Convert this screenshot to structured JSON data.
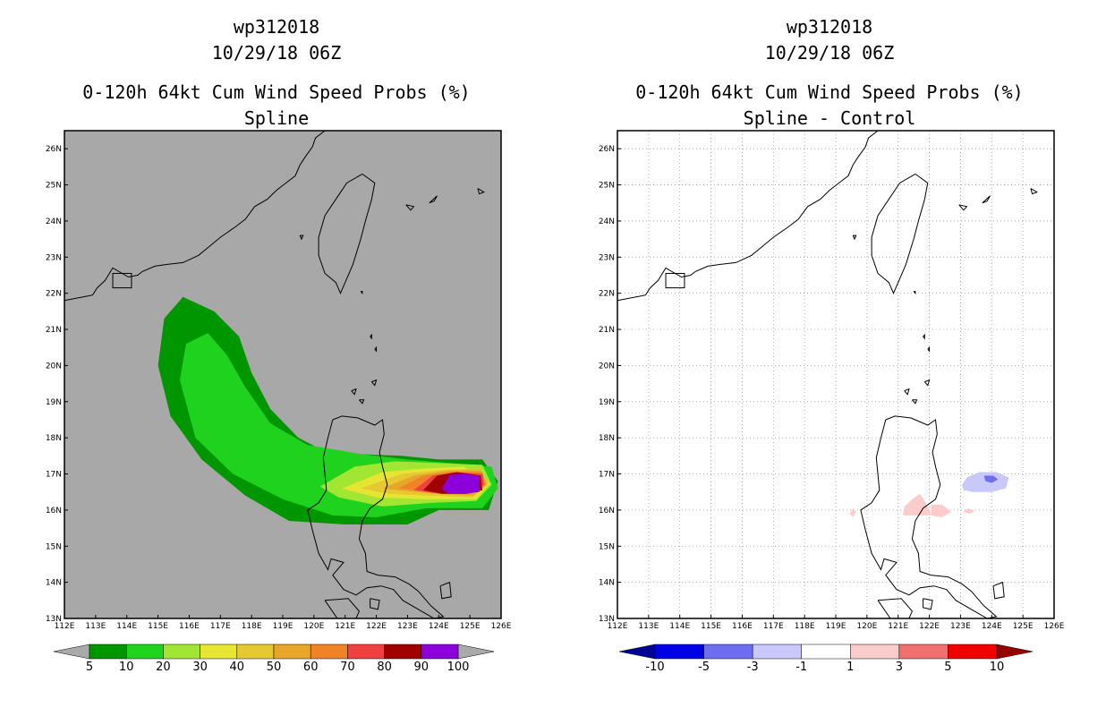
{
  "figure": {
    "storm_id": "wp312018",
    "datetime": "10/29/18 06Z",
    "product": "0-120h 64kt Cum Wind Speed Probs (%)",
    "colors": {
      "ocean": "#a8a8a8",
      "coast": "#000000",
      "grid": "#9a9a9a",
      "frame": "#000000"
    }
  },
  "axes": {
    "lon_min": 112,
    "lon_max": 126,
    "lat_min": 13,
    "lat_max": 26.5,
    "x_ticks": [
      "112E",
      "113E",
      "114E",
      "115E",
      "116E",
      "117E",
      "118E",
      "119E",
      "120E",
      "121E",
      "122E",
      "123E",
      "124E",
      "125E",
      "126E"
    ],
    "y_ticks": [
      "13N",
      "14N",
      "15N",
      "16N",
      "17N",
      "18N",
      "19N",
      "20N",
      "21N",
      "22N",
      "23N",
      "24N",
      "25N",
      "26N"
    ]
  },
  "left_panel": {
    "subtitle": "Spline",
    "colorbar": {
      "labels": [
        "5",
        "10",
        "20",
        "30",
        "40",
        "50",
        "60",
        "70",
        "80",
        "90",
        "100"
      ],
      "colors": [
        "#009600",
        "#1ed21e",
        "#a0e632",
        "#e6e632",
        "#e6c832",
        "#e6a628",
        "#f08228",
        "#f04040",
        "#a00000",
        "#8c00dc"
      ],
      "under_color": "#aaaaaa",
      "over_color": "#aaaaaa"
    }
  },
  "right_panel": {
    "subtitle": "Spline - Control",
    "colorbar": {
      "labels": [
        "-10",
        "-5",
        "-3",
        "-1",
        "1",
        "3",
        "5",
        "10"
      ],
      "colors": [
        "#0000e6",
        "#6e6ef0",
        "#c8c8fa",
        "#ffffff",
        "#facccc",
        "#f07070",
        "#f00000"
      ],
      "under_color": "#000096",
      "over_color": "#960000"
    }
  }
}
